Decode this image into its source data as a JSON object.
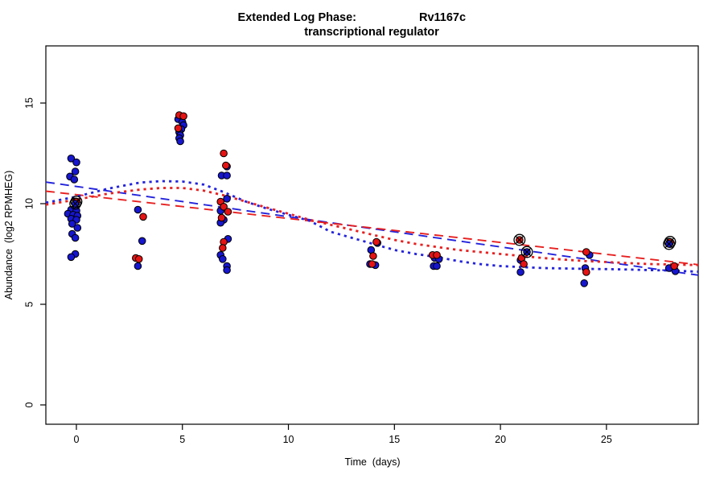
{
  "chart_data": {
    "type": "scatter",
    "title_line1_left": "Extended Log Phase:",
    "title_line1_right": "Rv1167c",
    "title_line2": "transcriptional regulator",
    "xlabel": "Time  (days)",
    "ylabel": "Abundance  (log2 RPMHEG)",
    "xlim": [
      -1.44,
      29.33
    ],
    "ylim": [
      -0.96,
      17.84
    ],
    "xticks": [
      0,
      5,
      10,
      15,
      20,
      25
    ],
    "yticks": [
      0,
      5,
      10,
      15
    ],
    "grid": false,
    "legend": "none",
    "colors": {
      "blue_point": "#1616cf",
      "red_point": "#e51313",
      "blue_line": "#2323dd",
      "red_line": "#e82020",
      "point_stroke": "#000000",
      "axis": "#000000",
      "background": "#ffffff"
    },
    "series": [
      {
        "name": "replicate-blue",
        "color": "blue",
        "points": [
          {
            "x": -0.25,
            "y": 12.25
          },
          {
            "x": 0.0,
            "y": 12.05
          },
          {
            "x": -0.05,
            "y": 11.6
          },
          {
            "x": -0.3,
            "y": 11.35
          },
          {
            "x": -0.1,
            "y": 11.2
          },
          {
            "x": -0.25,
            "y": 9.7
          },
          {
            "x": 0.0,
            "y": 9.65
          },
          {
            "x": -0.4,
            "y": 9.5
          },
          {
            "x": -0.15,
            "y": 9.45
          },
          {
            "x": 0.05,
            "y": 9.4
          },
          {
            "x": -0.25,
            "y": 9.25
          },
          {
            "x": 0.0,
            "y": 9.2
          },
          {
            "x": -0.2,
            "y": 9.0
          },
          {
            "x": 0.05,
            "y": 8.8
          },
          {
            "x": -0.2,
            "y": 8.5
          },
          {
            "x": -0.05,
            "y": 8.3
          },
          {
            "x": -0.05,
            "y": 7.5
          },
          {
            "x": -0.25,
            "y": 7.35
          },
          {
            "x": 2.9,
            "y": 9.7
          },
          {
            "x": 3.1,
            "y": 8.15
          },
          {
            "x": 2.9,
            "y": 6.9
          },
          {
            "x": 4.8,
            "y": 14.2
          },
          {
            "x": 5.0,
            "y": 14.05
          },
          {
            "x": 5.05,
            "y": 13.9
          },
          {
            "x": 4.95,
            "y": 13.7
          },
          {
            "x": 4.85,
            "y": 13.55
          },
          {
            "x": 4.9,
            "y": 13.4
          },
          {
            "x": 4.85,
            "y": 13.25
          },
          {
            "x": 4.9,
            "y": 13.1
          },
          {
            "x": 7.1,
            "y": 11.85
          },
          {
            "x": 6.85,
            "y": 11.4
          },
          {
            "x": 7.1,
            "y": 11.4
          },
          {
            "x": 7.1,
            "y": 10.25
          },
          {
            "x": 6.8,
            "y": 9.65
          },
          {
            "x": 6.95,
            "y": 9.2
          },
          {
            "x": 6.8,
            "y": 9.05
          },
          {
            "x": 7.15,
            "y": 8.25
          },
          {
            "x": 6.8,
            "y": 7.45
          },
          {
            "x": 6.9,
            "y": 7.25
          },
          {
            "x": 7.1,
            "y": 6.9
          },
          {
            "x": 7.1,
            "y": 6.7
          },
          {
            "x": 14.2,
            "y": 8.05
          },
          {
            "x": 13.9,
            "y": 7.7
          },
          {
            "x": 13.85,
            "y": 7.0
          },
          {
            "x": 14.1,
            "y": 6.95
          },
          {
            "x": 16.9,
            "y": 7.3
          },
          {
            "x": 17.1,
            "y": 7.25
          },
          {
            "x": 16.85,
            "y": 6.9
          },
          {
            "x": 17.0,
            "y": 6.9
          },
          {
            "x": 20.95,
            "y": 7.2
          },
          {
            "x": 20.95,
            "y": 6.6
          },
          {
            "x": 24.2,
            "y": 7.45
          },
          {
            "x": 24.0,
            "y": 6.8
          },
          {
            "x": 23.95,
            "y": 6.05
          },
          {
            "x": 27.95,
            "y": 6.8
          },
          {
            "x": 28.25,
            "y": 6.65
          }
        ]
      },
      {
        "name": "replicate-red",
        "color": "red",
        "points": [
          {
            "x": 3.15,
            "y": 9.35
          },
          {
            "x": 2.8,
            "y": 7.3
          },
          {
            "x": 2.95,
            "y": 7.25
          },
          {
            "x": 4.85,
            "y": 14.4
          },
          {
            "x": 5.05,
            "y": 14.35
          },
          {
            "x": 4.8,
            "y": 13.75
          },
          {
            "x": 6.95,
            "y": 12.5
          },
          {
            "x": 7.05,
            "y": 11.9
          },
          {
            "x": 6.8,
            "y": 10.1
          },
          {
            "x": 6.95,
            "y": 9.85
          },
          {
            "x": 7.15,
            "y": 9.6
          },
          {
            "x": 6.85,
            "y": 9.3
          },
          {
            "x": 6.95,
            "y": 8.1
          },
          {
            "x": 6.9,
            "y": 7.8
          },
          {
            "x": 14.15,
            "y": 8.1
          },
          {
            "x": 14.0,
            "y": 7.4
          },
          {
            "x": 13.95,
            "y": 7.0
          },
          {
            "x": 16.8,
            "y": 7.45
          },
          {
            "x": 17.0,
            "y": 7.45
          },
          {
            "x": 21.0,
            "y": 7.3
          },
          {
            "x": 21.1,
            "y": 7.0
          },
          {
            "x": 24.05,
            "y": 7.6
          },
          {
            "x": 24.05,
            "y": 6.6
          },
          {
            "x": 28.2,
            "y": 6.9
          }
        ]
      }
    ],
    "circled_points": [
      {
        "x": 0.0,
        "y": 10.1,
        "color": "red"
      },
      {
        "x": -0.05,
        "y": 10.0,
        "color": "blue"
      },
      {
        "x": 20.9,
        "y": 8.2,
        "color": "red"
      },
      {
        "x": 21.25,
        "y": 7.6,
        "color": "blue"
      },
      {
        "x": 28.0,
        "y": 8.1,
        "color": "red"
      },
      {
        "x": 27.95,
        "y": 8.0,
        "color": "blue"
      }
    ],
    "curves": [
      {
        "name": "linear-fit-blue",
        "color": "blue",
        "style": "dashed",
        "points": [
          [
            -1.44,
            11.07
          ],
          [
            29.33,
            6.45
          ]
        ]
      },
      {
        "name": "linear-fit-red",
        "color": "red",
        "style": "dashed",
        "points": [
          [
            -1.44,
            10.62
          ],
          [
            29.33,
            6.97
          ]
        ]
      },
      {
        "name": "loess-fit-blue",
        "color": "blue",
        "style": "dotted",
        "points": [
          [
            -1.44,
            10.05
          ],
          [
            0,
            10.35
          ],
          [
            1.5,
            10.75
          ],
          [
            3,
            11.05
          ],
          [
            4,
            11.12
          ],
          [
            5,
            11.1
          ],
          [
            6,
            10.95
          ],
          [
            7,
            10.55
          ],
          [
            8,
            10.1
          ],
          [
            9,
            9.75
          ],
          [
            10,
            9.45
          ],
          [
            11,
            9.15
          ],
          [
            12,
            8.6
          ],
          [
            13,
            8.3
          ],
          [
            14,
            8.0
          ],
          [
            15,
            7.7
          ],
          [
            16,
            7.5
          ],
          [
            17,
            7.35
          ],
          [
            18,
            7.15
          ],
          [
            19,
            7.0
          ],
          [
            20,
            6.9
          ],
          [
            21,
            6.85
          ],
          [
            22,
            6.8
          ],
          [
            23,
            6.78
          ],
          [
            24,
            6.76
          ],
          [
            25,
            6.75
          ],
          [
            26,
            6.73
          ],
          [
            27,
            6.7
          ],
          [
            28,
            6.68
          ],
          [
            29.33,
            6.62
          ]
        ]
      },
      {
        "name": "loess-fit-red",
        "color": "red",
        "style": "dotted",
        "points": [
          [
            -1.44,
            9.95
          ],
          [
            0,
            10.2
          ],
          [
            1.5,
            10.5
          ],
          [
            3,
            10.7
          ],
          [
            4,
            10.78
          ],
          [
            5,
            10.78
          ],
          [
            6,
            10.65
          ],
          [
            7,
            10.4
          ],
          [
            8,
            10.1
          ],
          [
            9,
            9.8
          ],
          [
            10,
            9.5
          ],
          [
            11,
            9.2
          ],
          [
            12,
            8.95
          ],
          [
            13,
            8.7
          ],
          [
            14,
            8.45
          ],
          [
            15,
            8.2
          ],
          [
            16,
            8.0
          ],
          [
            17,
            7.85
          ],
          [
            18,
            7.7
          ],
          [
            19,
            7.6
          ],
          [
            20,
            7.5
          ],
          [
            21,
            7.4
          ],
          [
            22,
            7.3
          ],
          [
            23,
            7.22
          ],
          [
            24,
            7.15
          ],
          [
            25,
            7.1
          ],
          [
            26,
            7.05
          ],
          [
            27,
            7.0
          ],
          [
            28,
            6.98
          ],
          [
            29.33,
            6.95
          ]
        ]
      }
    ]
  }
}
